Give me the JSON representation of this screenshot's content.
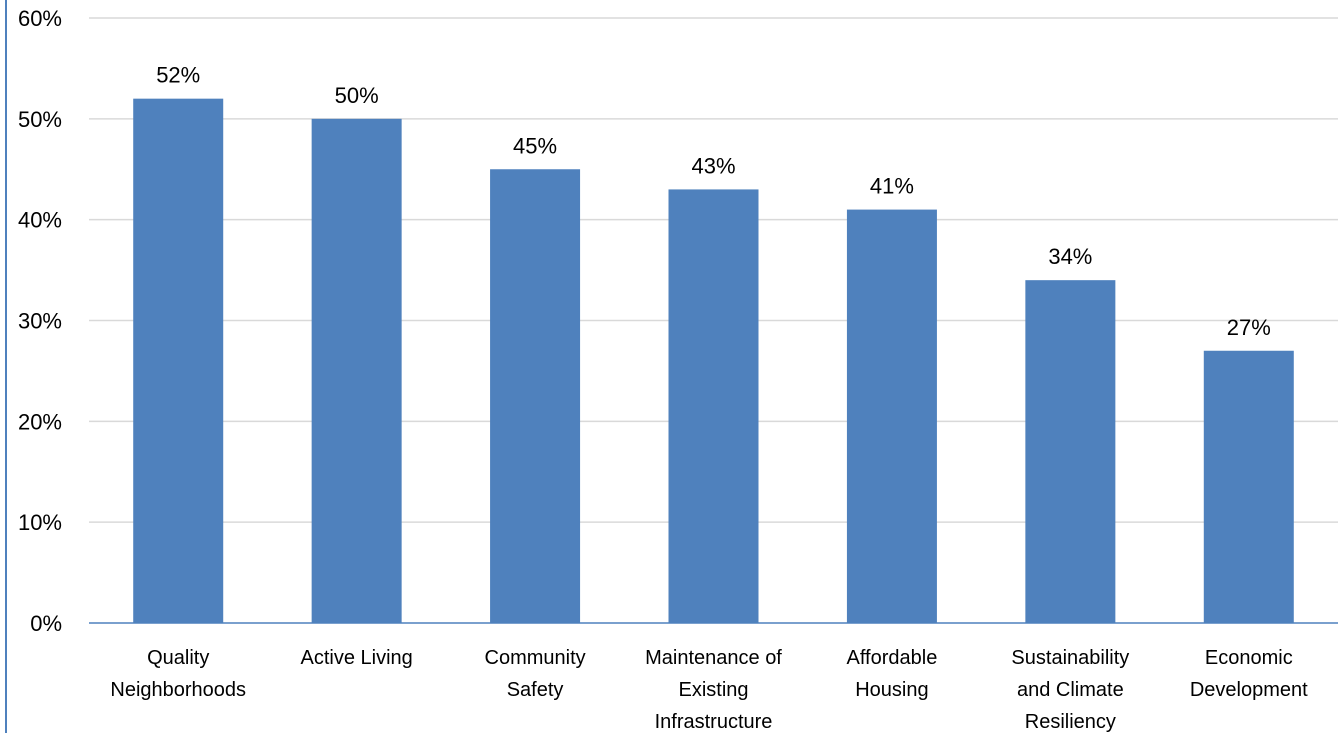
{
  "chart_data": {
    "type": "bar",
    "title": "",
    "xlabel": "",
    "ylabel": "",
    "categories": [
      [
        "Quality",
        "Neighborhoods"
      ],
      [
        "Active Living"
      ],
      [
        "Community",
        "Safety"
      ],
      [
        "Maintenance of",
        "Existing",
        "Infrastructure"
      ],
      [
        "Affordable",
        "Housing"
      ],
      [
        "Sustainability",
        "and Climate",
        "Resiliency"
      ],
      [
        "Economic",
        "Development"
      ]
    ],
    "values": [
      52,
      50,
      45,
      43,
      41,
      34,
      27
    ],
    "data_labels": [
      "52%",
      "50%",
      "45%",
      "43%",
      "41%",
      "34%",
      "27%"
    ],
    "ylim": [
      0,
      60
    ],
    "yticks": [
      0,
      10,
      20,
      30,
      40,
      50,
      60
    ],
    "ytick_labels": [
      "0%",
      "10%",
      "20%",
      "30%",
      "40%",
      "50%",
      "60%"
    ],
    "grid": true,
    "legend": "none",
    "bar_color": "#4F81BD",
    "grid_color": "#D9D9D9",
    "axis_color": "#4F81BD"
  }
}
